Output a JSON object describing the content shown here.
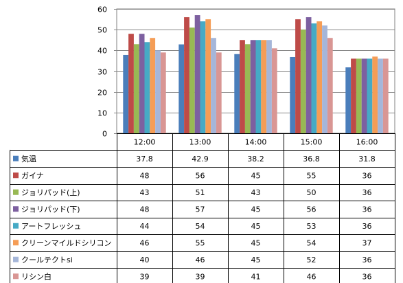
{
  "chart_data": {
    "type": "bar",
    "categories": [
      "12:00",
      "13:00",
      "14:00",
      "15:00",
      "16:00"
    ],
    "ylim": [
      0,
      60
    ],
    "yticks": [
      0,
      10,
      20,
      30,
      40,
      50,
      60
    ],
    "grid": "horizontal",
    "legend": "data-table",
    "series": [
      {
        "name": "気温",
        "color": "#4a7ebb",
        "values": [
          "37.8",
          "42.9",
          "38.2",
          "36.8",
          "31.8"
        ]
      },
      {
        "name": "ガイナ",
        "color": "#be4b48",
        "values": [
          "48",
          "56",
          "45",
          "55",
          "36"
        ]
      },
      {
        "name": "ジョリパッド(上)",
        "color": "#98b954",
        "values": [
          "43",
          "51",
          "43",
          "50",
          "36"
        ]
      },
      {
        "name": "ジョリパッド(下)",
        "color": "#7d60a0",
        "values": [
          "48",
          "57",
          "45",
          "56",
          "36"
        ]
      },
      {
        "name": "アートフレッシュ",
        "color": "#46aac5",
        "values": [
          "44",
          "54",
          "45",
          "53",
          "36"
        ]
      },
      {
        "name": "クリーンマイルドシリコン",
        "color": "#f59d56",
        "values": [
          "46",
          "55",
          "45",
          "54",
          "37"
        ]
      },
      {
        "name": "クールテクトsi",
        "color": "#a5b6d9",
        "values": [
          "40",
          "46",
          "45",
          "52",
          "36"
        ]
      },
      {
        "name": "リシン白",
        "color": "#d99694",
        "values": [
          "39",
          "39",
          "41",
          "46",
          "36"
        ]
      }
    ]
  }
}
